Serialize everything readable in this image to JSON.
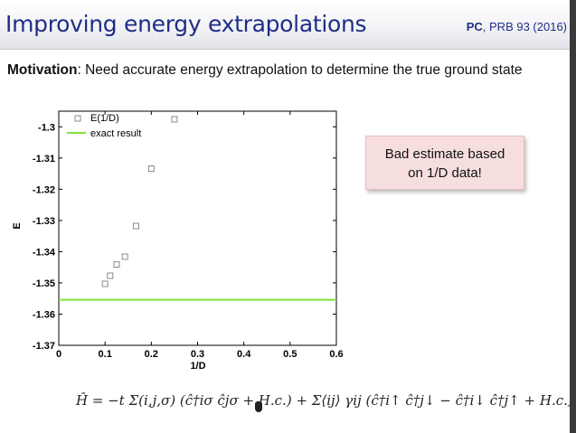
{
  "slide": {
    "title": "Improving energy extrapolations",
    "ref_author": "PC",
    "ref_journal": ", PRB 93 (2016)",
    "motivation_key": "Motivation",
    "motivation_text": ": Need accurate energy extrapolation to determine the true ground state",
    "callout_line1": "Bad estimate based",
    "callout_line2": "on 1/D data!",
    "hamiltonian": "Ĥ = −t Σ(i,j,σ) (ĉ†iσ ĉjσ + H.c.) + Σ⟨ij⟩ γij (ĉ†i↑ ĉ†j↓ − ĉ†i↓ ĉ†j↑ + H.c.)"
  },
  "chart_data": {
    "type": "scatter",
    "xlabel": "1/D",
    "ylabel": "E",
    "xlim": [
      0,
      0.6
    ],
    "ylim": [
      -1.37,
      -1.295
    ],
    "x_ticks": [
      "0",
      "0.1",
      "0.2",
      "0.3",
      "0.4",
      "0.5",
      "0.6"
    ],
    "y_ticks": [
      "-1.3",
      "-1.31",
      "-1.32",
      "-1.33",
      "-1.34",
      "-1.35",
      "-1.36",
      "-1.37"
    ],
    "series": [
      {
        "name": "E(1/D)",
        "marker": "open-square",
        "color": "#8a8a8a",
        "x": [
          0.1,
          0.111,
          0.125,
          0.143,
          0.167,
          0.2,
          0.25
        ],
        "y": [
          -1.3503,
          -1.3477,
          -1.3441,
          -1.3416,
          -1.3318,
          -1.3134,
          -1.2976
        ]
      },
      {
        "name": "exact result",
        "kind": "hline",
        "color": "#82e03a",
        "y": -1.3554
      }
    ],
    "legend_position": "top-left",
    "grid": false
  }
}
